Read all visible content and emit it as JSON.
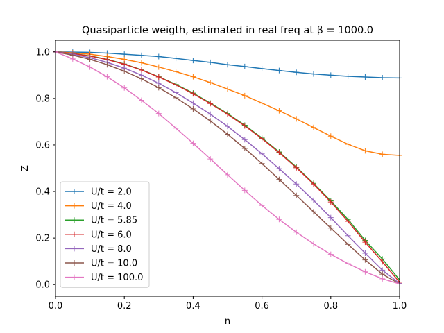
{
  "chart_data": {
    "type": "line",
    "title": "Quasiparticle weigth, estimated in real freq at β = 1000.0",
    "xlabel": "n",
    "ylabel": "Z",
    "xlim": [
      0.0,
      1.0
    ],
    "ylim": [
      -0.05,
      1.05
    ],
    "x_ticks": [
      "0.0",
      "0.2",
      "0.4",
      "0.6",
      "0.8",
      "1.0"
    ],
    "y_ticks": [
      "0.0",
      "0.2",
      "0.4",
      "0.6",
      "0.8",
      "1.0"
    ],
    "marker": "+",
    "grid": false,
    "legend_position": "lower-left",
    "x": [
      0.0,
      0.05,
      0.1,
      0.15,
      0.2,
      0.25,
      0.3,
      0.35,
      0.4,
      0.45,
      0.5,
      0.55,
      0.6,
      0.65,
      0.7,
      0.75,
      0.8,
      0.85,
      0.9,
      0.95,
      1.0
    ],
    "series": [
      {
        "name": "U/t = 2.0",
        "color": "#1f77b4",
        "values": [
          1.0,
          0.999,
          0.998,
          0.995,
          0.99,
          0.985,
          0.98,
          0.972,
          0.963,
          0.955,
          0.945,
          0.937,
          0.928,
          0.92,
          0.912,
          0.905,
          0.9,
          0.895,
          0.892,
          0.889,
          0.888
        ]
      },
      {
        "name": "U/t = 4.0",
        "color": "#ff7f0e",
        "values": [
          1.0,
          0.996,
          0.99,
          0.98,
          0.968,
          0.953,
          0.935,
          0.915,
          0.893,
          0.868,
          0.84,
          0.812,
          0.78,
          0.747,
          0.712,
          0.675,
          0.638,
          0.603,
          0.575,
          0.56,
          0.555
        ]
      },
      {
        "name": "U/t = 5.85",
        "color": "#2ca02c",
        "values": [
          1.0,
          0.993,
          0.983,
          0.968,
          0.948,
          0.923,
          0.893,
          0.86,
          0.823,
          0.78,
          0.735,
          0.685,
          0.63,
          0.57,
          0.505,
          0.435,
          0.36,
          0.28,
          0.19,
          0.11,
          0.02
        ]
      },
      {
        "name": "U/t = 6.0",
        "color": "#d62728",
        "values": [
          1.0,
          0.993,
          0.982,
          0.967,
          0.947,
          0.922,
          0.892,
          0.858,
          0.82,
          0.778,
          0.732,
          0.682,
          0.627,
          0.567,
          0.502,
          0.432,
          0.355,
          0.272,
          0.182,
          0.098,
          0.01
        ]
      },
      {
        "name": "U/t = 8.0",
        "color": "#9467bd",
        "values": [
          1.0,
          0.99,
          0.975,
          0.955,
          0.93,
          0.9,
          0.865,
          0.825,
          0.78,
          0.732,
          0.68,
          0.623,
          0.562,
          0.498,
          0.432,
          0.362,
          0.288,
          0.21,
          0.135,
          0.062,
          0.005
        ]
      },
      {
        "name": "U/t = 10.0",
        "color": "#8c564b",
        "values": [
          1.0,
          0.986,
          0.968,
          0.945,
          0.917,
          0.884,
          0.846,
          0.803,
          0.755,
          0.703,
          0.646,
          0.585,
          0.52,
          0.452,
          0.383,
          0.313,
          0.243,
          0.173,
          0.106,
          0.045,
          0.003
        ]
      },
      {
        "name": "U/t = 100.0",
        "color": "#e377c2",
        "values": [
          1.0,
          0.97,
          0.935,
          0.893,
          0.845,
          0.792,
          0.735,
          0.672,
          0.607,
          0.54,
          0.472,
          0.405,
          0.34,
          0.28,
          0.225,
          0.175,
          0.13,
          0.09,
          0.055,
          0.025,
          0.003
        ]
      }
    ]
  }
}
